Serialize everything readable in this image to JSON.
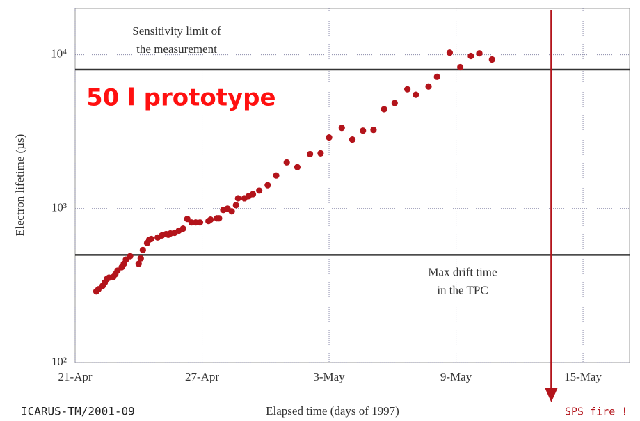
{
  "chart_data": {
    "type": "scatter",
    "y_label": "Electron lifetime (µs)",
    "x_label": "Elapsed time (days of 1997)",
    "footer": "ICARUS-TM/2001-09",
    "annotation": "50 l prototype",
    "log_y": true,
    "grid": true,
    "color": "#b3141b",
    "xlim": [
      111,
      137.2
    ],
    "xticks": [
      {
        "value": 111,
        "label": "21-Apr"
      },
      {
        "value": 117,
        "label": "27-Apr"
      },
      {
        "value": 123,
        "label": "3-May"
      },
      {
        "value": 129,
        "label": "9-May"
      },
      {
        "value": 135,
        "label": "15-May"
      }
    ],
    "ylim": [
      100,
      20000
    ],
    "yticks": [
      {
        "value": 100,
        "label": "10²"
      },
      {
        "value": 1000,
        "label": "10³"
      },
      {
        "value": 10000,
        "label": "10⁴"
      }
    ],
    "reference_lines": [
      {
        "value": 8000,
        "label": [
          "Sensitivity limit of",
          "the measurement"
        ]
      },
      {
        "value": 500,
        "label": [
          "Max drift time",
          "in the TPC"
        ]
      }
    ],
    "event": {
      "x": 133.5,
      "label": "SPS fire !",
      "color": "#b3141b"
    },
    "x": [
      112.0,
      112.1,
      112.3,
      112.4,
      112.5,
      112.6,
      112.8,
      112.9,
      113.0,
      113.2,
      113.3,
      113.4,
      113.6,
      114.0,
      114.1,
      114.2,
      114.4,
      114.5,
      114.6,
      114.9,
      115.1,
      115.3,
      115.4,
      115.5,
      115.7,
      115.9,
      116.1,
      116.3,
      116.5,
      116.7,
      116.9,
      117.3,
      117.4,
      117.7,
      117.8,
      118.0,
      118.2,
      118.4,
      118.6,
      118.7,
      119.0,
      119.2,
      119.4,
      119.7,
      120.1,
      120.5,
      121.0,
      121.5,
      122.1,
      122.6,
      123.0,
      123.6,
      124.1,
      124.6,
      125.1,
      125.6,
      126.1,
      126.7,
      127.1,
      127.7,
      128.1,
      128.7,
      129.2,
      129.7,
      130.1,
      130.7
    ],
    "values": [
      290,
      299,
      315,
      331,
      349,
      356,
      360,
      375,
      395,
      416,
      438,
      466,
      491,
      438,
      475,
      538,
      597,
      628,
      635,
      649,
      669,
      683,
      676,
      690,
      697,
      719,
      741,
      857,
      813,
      813,
      813,
      830,
      848,
      865,
      865,
      980,
      1000,
      960,
      1052,
      1167,
      1167,
      1205,
      1242,
      1309,
      1419,
      1641,
      1997,
      1858,
      2261,
      2286,
      2897,
      3347,
      2808,
      3212,
      3246,
      4424,
      4853,
      5966,
      5495,
      6217,
      7186,
      10300,
      8300,
      9800,
      10200,
      9310
    ]
  }
}
